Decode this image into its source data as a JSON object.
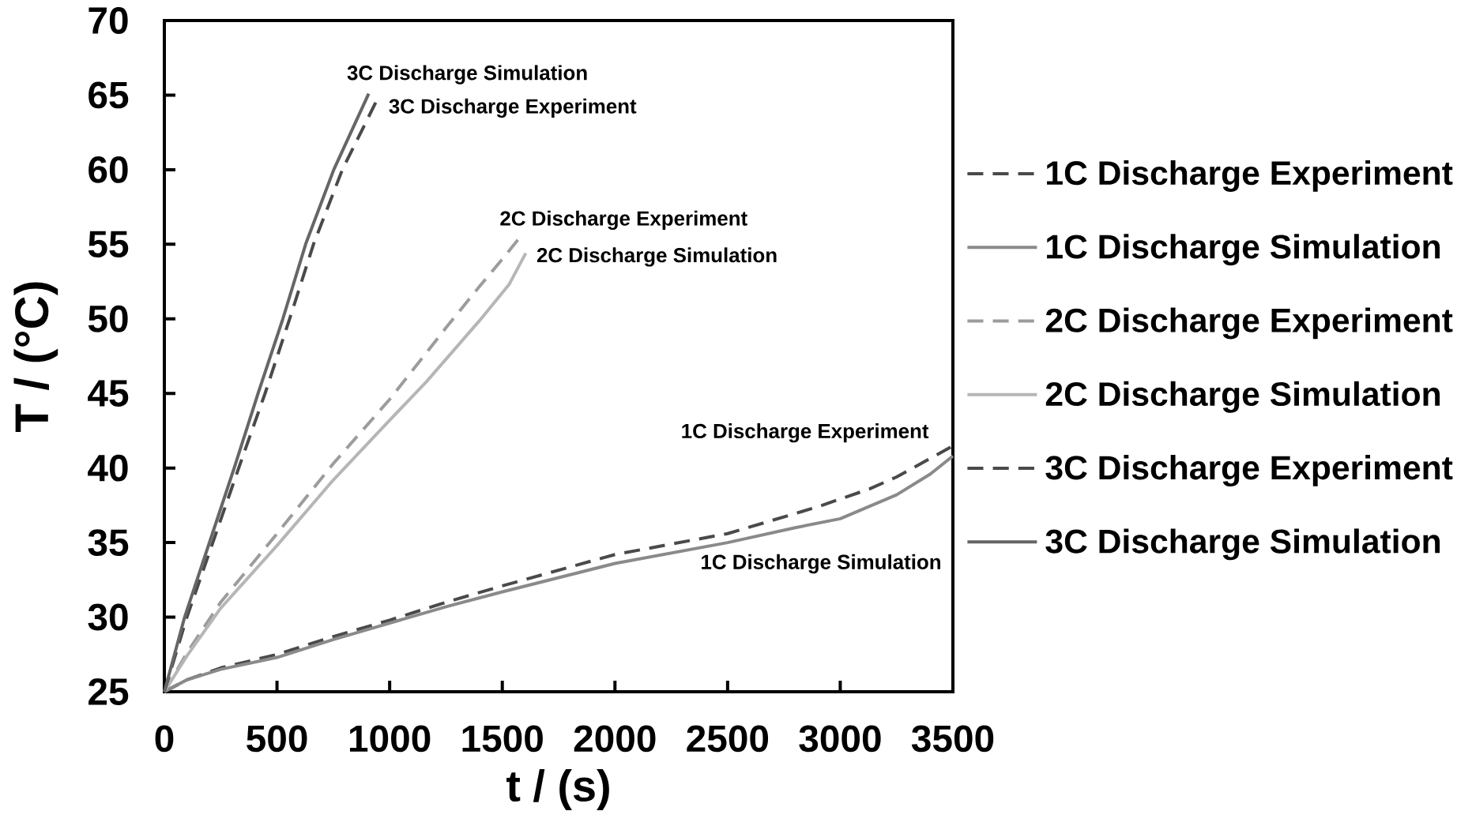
{
  "chart_data": {
    "type": "line",
    "xlabel": "t / (s)",
    "ylabel": "T / (°C)",
    "xlim": [
      0,
      3500
    ],
    "ylim": [
      25,
      70
    ],
    "xticks": [
      0,
      500,
      1000,
      1500,
      2000,
      2500,
      3000,
      3500
    ],
    "yticks": [
      25,
      30,
      35,
      40,
      45,
      50,
      55,
      60,
      65,
      70
    ],
    "legend": "right",
    "series": [
      {
        "name": "1C Discharge Experiment",
        "color": "#4a4a4a",
        "line_style": "dashed",
        "x": [
          0,
          100,
          250,
          500,
          750,
          1000,
          1250,
          1500,
          2000,
          2500,
          2900,
          3130,
          3250,
          3490
        ],
        "values": [
          25,
          25.8,
          26.6,
          27.5,
          28.7,
          29.8,
          31.0,
          32.1,
          34.2,
          35.6,
          37.4,
          38.6,
          39.4,
          41.4
        ]
      },
      {
        "name": "1C Discharge Simulation",
        "color": "#8a8a8a",
        "line_style": "solid",
        "x": [
          0,
          100,
          250,
          500,
          750,
          1000,
          1250,
          1500,
          2000,
          2500,
          2800,
          3000,
          3250,
          3400,
          3500
        ],
        "values": [
          25,
          25.8,
          26.5,
          27.3,
          28.5,
          29.6,
          30.7,
          31.7,
          33.6,
          35.0,
          36.0,
          36.6,
          38.2,
          39.6,
          40.8
        ]
      },
      {
        "name": "2C Discharge Experiment",
        "color": "#9c9c9c",
        "line_style": "dashed",
        "x": [
          0,
          100,
          250,
          500,
          750,
          1000,
          1250,
          1400,
          1500,
          1569
        ],
        "values": [
          25,
          27.6,
          31.0,
          35.6,
          40.3,
          44.6,
          49.4,
          52.2,
          54.0,
          55.3
        ]
      },
      {
        "name": "2C Discharge Simulation",
        "color": "#b6b6b6",
        "line_style": "solid",
        "x": [
          0,
          100,
          250,
          500,
          750,
          1000,
          1164,
          1400,
          1530,
          1604
        ],
        "values": [
          25,
          27.4,
          30.6,
          34.8,
          39.2,
          43.2,
          45.8,
          49.9,
          52.3,
          54.4
        ]
      },
      {
        "name": "3C Discharge Experiment",
        "color": "#4a4a4a",
        "line_style": "dashed",
        "x": [
          0,
          100,
          215,
          330,
          447,
          556,
          662,
          790,
          938
        ],
        "values": [
          25,
          30,
          35,
          40,
          45,
          50,
          55,
          60,
          64.5
        ]
      },
      {
        "name": "3C Discharge Simulation",
        "color": "#666666",
        "line_style": "solid",
        "x": [
          0,
          90,
          200,
          310,
          416,
          526,
          627,
          752,
          907
        ],
        "values": [
          25,
          30,
          35,
          40,
          45,
          50,
          55,
          60,
          65.1
        ]
      }
    ],
    "annotations": [
      {
        "text": "3C Discharge Simulation",
        "x": 907,
        "y": 65.1
      },
      {
        "text": "3C Discharge Experiment",
        "x": 938,
        "y": 64.5
      },
      {
        "text": "2C Discharge Experiment",
        "x": 1569,
        "y": 55.3
      },
      {
        "text": "2C Discharge Simulation",
        "x": 1604,
        "y": 54.4
      },
      {
        "text": "1C Discharge Experiment",
        "x": 3490,
        "y": 41.4
      },
      "1C Discharge Simulation"
    ]
  }
}
